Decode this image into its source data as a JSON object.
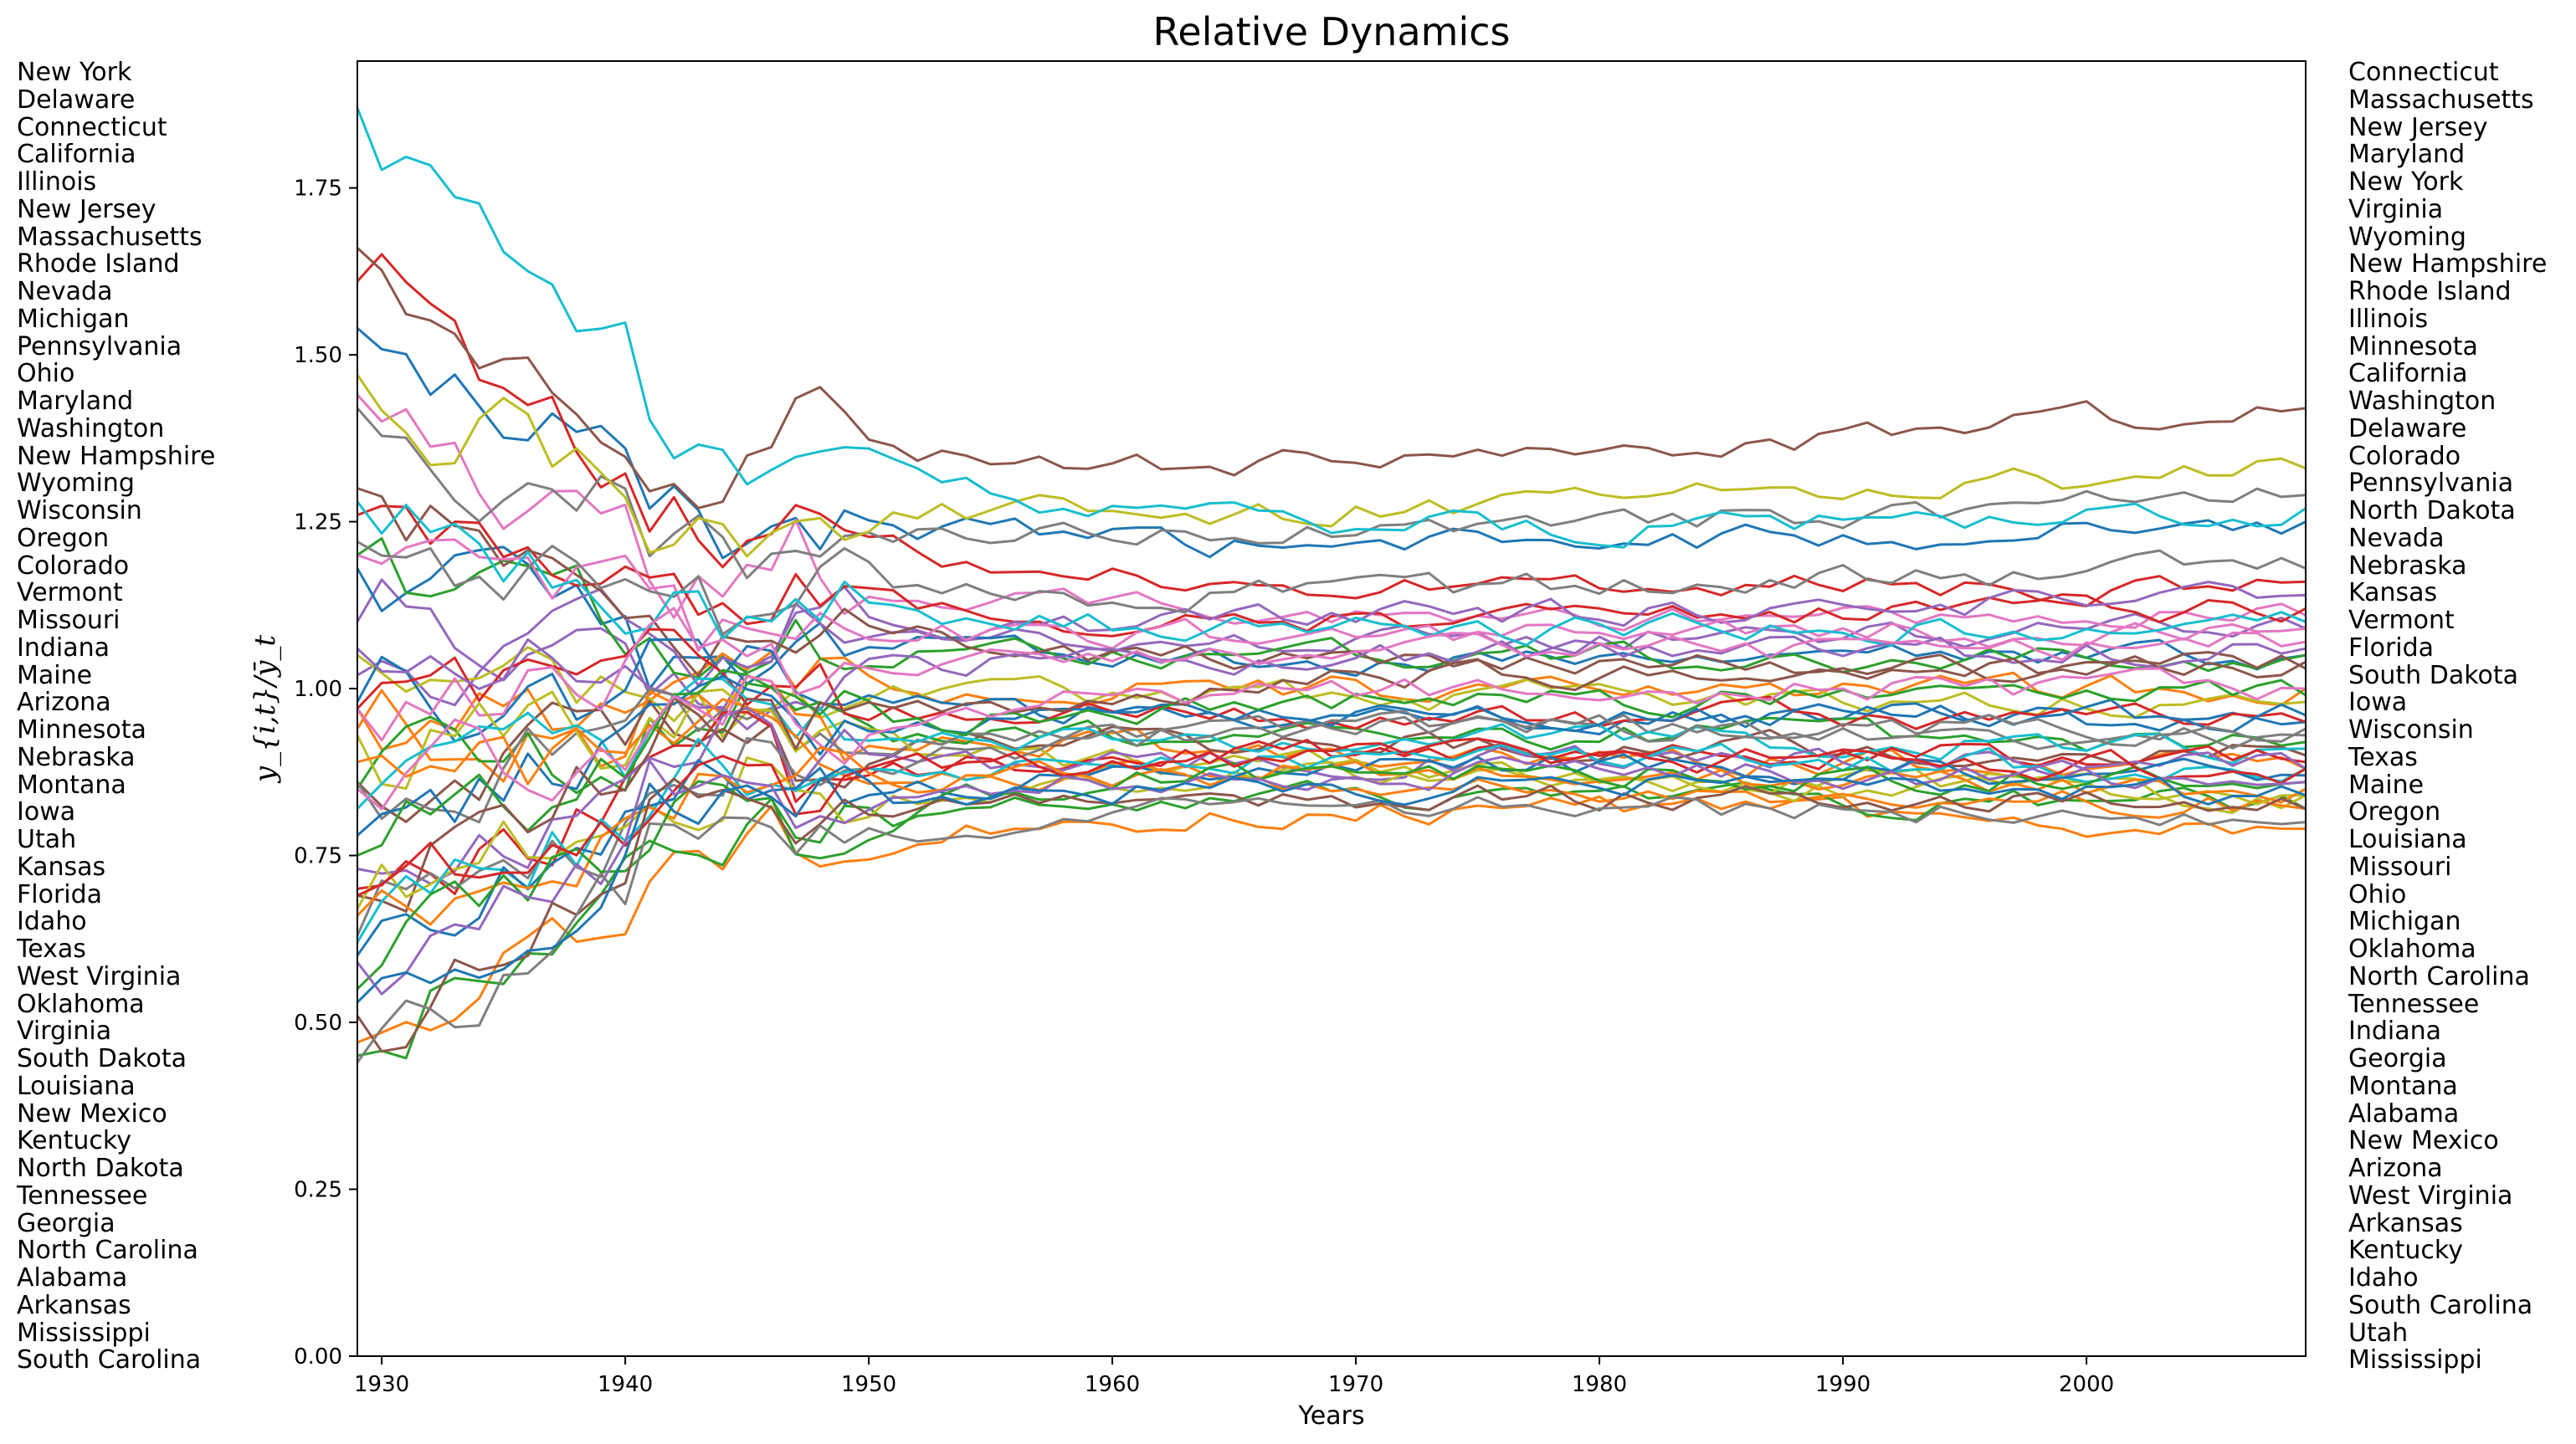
{
  "chart_data": {
    "type": "line",
    "title": "Relative Dynamics",
    "xlabel": "Years",
    "ylabel": "y_{i,t}/ȳ_t",
    "xlim": [
      1929,
      2009
    ],
    "ylim": [
      0.0,
      1.94
    ],
    "xticks": [
      1930,
      1940,
      1950,
      1960,
      1970,
      1980,
      1990,
      2000
    ],
    "yticks": [
      "0.00",
      "0.25",
      "0.50",
      "0.75",
      "1.00",
      "1.25",
      "1.50",
      "1.75"
    ],
    "grid": false,
    "legend": "none",
    "labels_left": [
      "New York",
      "Delaware",
      "Connecticut",
      "California",
      "Illinois",
      "New Jersey",
      "Massachusetts",
      "Rhode Island",
      "Nevada",
      "Michigan",
      "Pennsylvania",
      "Ohio",
      "Maryland",
      "Washington",
      "New Hampshire",
      "Wyoming",
      "Wisconsin",
      "Oregon",
      "Colorado",
      "Vermont",
      "Missouri",
      "Indiana",
      "Maine",
      "Arizona",
      "Minnesota",
      "Nebraska",
      "Montana",
      "Iowa",
      "Utah",
      "Kansas",
      "Florida",
      "Idaho",
      "Texas",
      "West Virginia",
      "Oklahoma",
      "Virginia",
      "South Dakota",
      "Louisiana",
      "New Mexico",
      "Kentucky",
      "North Dakota",
      "Tennessee",
      "Georgia",
      "North Carolina",
      "Alabama",
      "Arkansas",
      "Mississippi",
      "South Carolina"
    ],
    "labels_right": [
      "Connecticut",
      "Massachusetts",
      "New Jersey",
      "Maryland",
      "New York",
      "Virginia",
      "Wyoming",
      "New Hampshire",
      "Rhode Island",
      "Illinois",
      "Minnesota",
      "California",
      "Washington",
      "Delaware",
      "Colorado",
      "Pennsylvania",
      "North Dakota",
      "Nevada",
      "Nebraska",
      "Kansas",
      "Vermont",
      "Florida",
      "South Dakota",
      "Iowa",
      "Wisconsin",
      "Texas",
      "Maine",
      "Oregon",
      "Louisiana",
      "Missouri",
      "Ohio",
      "Michigan",
      "Oklahoma",
      "North Carolina",
      "Tennessee",
      "Indiana",
      "Georgia",
      "Montana",
      "Alabama",
      "New Mexico",
      "Arizona",
      "West Virginia",
      "Arkansas",
      "Kentucky",
      "Idaho",
      "South Carolina",
      "Utah",
      "Mississippi"
    ],
    "x": [
      1929,
      1930,
      1931,
      1932,
      1933,
      1934,
      1935,
      1936,
      1937,
      1938,
      1939,
      1940,
      1941,
      1942,
      1943,
      1944,
      1945,
      1946,
      1947,
      1948,
      1949,
      1950,
      1951,
      1952,
      1953,
      1954,
      1955,
      1956,
      1957,
      1958,
      1959,
      1960,
      1961,
      1962,
      1963,
      1964,
      1965,
      1966,
      1967,
      1968,
      1969,
      1970,
      1971,
      1972,
      1973,
      1974,
      1975,
      1976,
      1977,
      1978,
      1979,
      1980,
      1981,
      1982,
      1983,
      1984,
      1985,
      1986,
      1987,
      1988,
      1989,
      1990,
      1991,
      1992,
      1993,
      1994,
      1995,
      1996,
      1997,
      1998,
      1999,
      2000,
      2001,
      2002,
      2003,
      2004,
      2005,
      2006,
      2007,
      2008,
      2009
    ],
    "series": [
      {
        "color": "#1f77b4",
        "start": 1.54,
        "end": 1.25
      },
      {
        "color": "#ff7f0e",
        "start": 0.47,
        "end": 0.79
      },
      {
        "color": "#2ca02c",
        "start": 0.45,
        "end": 0.82
      },
      {
        "color": "#d62728",
        "start": 1.61,
        "end": 1.16
      },
      {
        "color": "#9467bd",
        "start": 1.1,
        "end": 1.09
      },
      {
        "color": "#8c564b",
        "start": 1.66,
        "end": 1.42
      },
      {
        "color": "#e377c2",
        "start": 1.44,
        "end": 1.11
      },
      {
        "color": "#7f7f7f",
        "start": 1.42,
        "end": 1.29
      },
      {
        "color": "#bcbd22",
        "start": 1.47,
        "end": 1.33
      },
      {
        "color": "#17becf",
        "start": 1.87,
        "end": 1.27
      },
      {
        "color": "#1f77b4",
        "start": 1.18,
        "end": 1.05
      },
      {
        "color": "#ff7f0e",
        "start": 0.97,
        "end": 1.0
      },
      {
        "color": "#2ca02c",
        "start": 1.2,
        "end": 1.05
      },
      {
        "color": "#d62728",
        "start": 1.26,
        "end": 1.12
      },
      {
        "color": "#9467bd",
        "start": 1.02,
        "end": 1.14
      },
      {
        "color": "#8c564b",
        "start": 1.3,
        "end": 1.03
      },
      {
        "color": "#e377c2",
        "start": 1.2,
        "end": 1.09
      },
      {
        "color": "#7f7f7f",
        "start": 1.22,
        "end": 1.18
      },
      {
        "color": "#bcbd22",
        "start": 1.05,
        "end": 0.98
      },
      {
        "color": "#17becf",
        "start": 1.28,
        "end": 1.1
      },
      {
        "color": "#1f77b4",
        "start": 0.98,
        "end": 0.95
      },
      {
        "color": "#ff7f0e",
        "start": 0.94,
        "end": 0.88
      },
      {
        "color": "#2ca02c",
        "start": 0.85,
        "end": 0.92
      },
      {
        "color": "#d62728",
        "start": 0.97,
        "end": 0.95
      },
      {
        "color": "#9467bd",
        "start": 1.06,
        "end": 1.06
      },
      {
        "color": "#8c564b",
        "start": 0.86,
        "end": 0.9
      },
      {
        "color": "#e377c2",
        "start": 0.97,
        "end": 1.07
      },
      {
        "color": "#7f7f7f",
        "start": 0.86,
        "end": 0.93
      },
      {
        "color": "#bcbd22",
        "start": 0.93,
        "end": 0.84
      },
      {
        "color": "#17becf",
        "start": 0.82,
        "end": 0.91
      },
      {
        "color": "#1f77b4",
        "start": 0.78,
        "end": 0.96
      },
      {
        "color": "#ff7f0e",
        "start": 0.89,
        "end": 0.82
      },
      {
        "color": "#2ca02c",
        "start": 0.75,
        "end": 0.99
      },
      {
        "color": "#d62728",
        "start": 0.7,
        "end": 0.89
      },
      {
        "color": "#9467bd",
        "start": 0.73,
        "end": 0.88
      },
      {
        "color": "#8c564b",
        "start": 0.69,
        "end": 1.04
      },
      {
        "color": "#e377c2",
        "start": 0.85,
        "end": 1.0
      },
      {
        "color": "#7f7f7f",
        "start": 0.63,
        "end": 0.94
      },
      {
        "color": "#bcbd22",
        "start": 0.67,
        "end": 0.84
      },
      {
        "color": "#17becf",
        "start": 0.62,
        "end": 0.88
      },
      {
        "color": "#1f77b4",
        "start": 0.6,
        "end": 0.87
      },
      {
        "color": "#ff7f0e",
        "start": 0.66,
        "end": 0.85
      },
      {
        "color": "#2ca02c",
        "start": 0.55,
        "end": 0.86
      },
      {
        "color": "#d62728",
        "start": 0.69,
        "end": 0.88
      },
      {
        "color": "#9467bd",
        "start": 0.59,
        "end": 0.86
      },
      {
        "color": "#8c564b",
        "start": 0.51,
        "end": 0.82
      },
      {
        "color": "#7f7f7f",
        "start": 0.44,
        "end": 0.8
      },
      {
        "color": "#1f77b4",
        "start": 0.53,
        "end": 0.84
      }
    ]
  }
}
